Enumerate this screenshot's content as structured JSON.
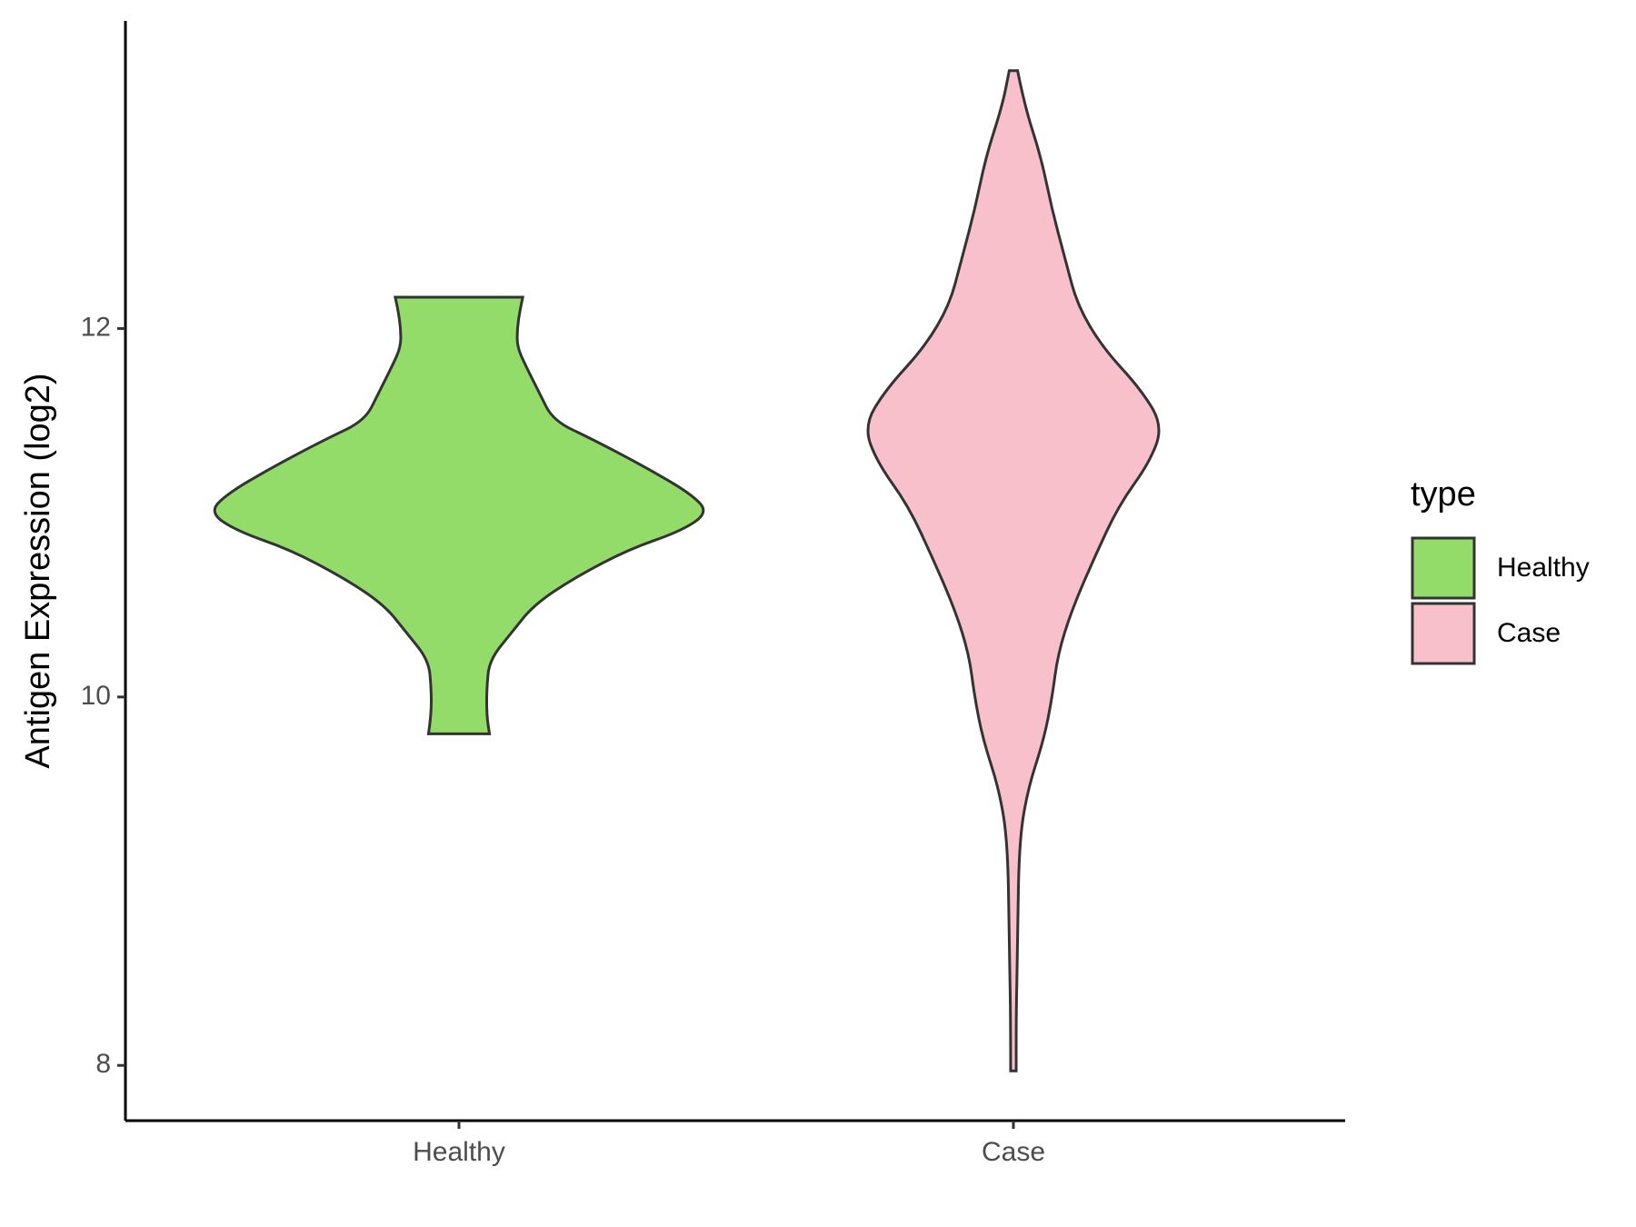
{
  "chart_data": {
    "type": "violin",
    "y_label": "Antigen Expression (log2)",
    "categories": [
      "Healthy",
      "Case"
    ],
    "legend_title": "type",
    "legend_position": "right",
    "ylim": [
      7.7,
      13.67
    ],
    "yticks": [
      8,
      10,
      12
    ],
    "series": [
      {
        "name": "Healthy",
        "color": "#93dc6a",
        "y": [
          12.17,
          12.1,
          12.0,
          11.9,
          11.8,
          11.65,
          11.5,
          11.4,
          11.25,
          11.1,
          11.0,
          10.9,
          10.8,
          10.65,
          10.5,
          10.35,
          10.2,
          10.05,
          9.9,
          9.8
        ],
        "widths": [
          0.23,
          0.22,
          0.21,
          0.21,
          0.24,
          0.29,
          0.34,
          0.48,
          0.67,
          0.84,
          0.9,
          0.8,
          0.61,
          0.42,
          0.27,
          0.19,
          0.11,
          0.1,
          0.1,
          0.11
        ]
      },
      {
        "name": "Case",
        "color": "#f7c0cb",
        "y": [
          13.4,
          13.21,
          12.93,
          12.64,
          12.36,
          12.13,
          11.9,
          11.67,
          11.47,
          11.27,
          11.04,
          10.75,
          10.47,
          10.23,
          10.0,
          9.77,
          9.49,
          9.2,
          8.63,
          8.29,
          7.97
        ],
        "widths": [
          0.015,
          0.04,
          0.1,
          0.14,
          0.19,
          0.23,
          0.32,
          0.46,
          0.54,
          0.49,
          0.38,
          0.29,
          0.21,
          0.16,
          0.14,
          0.11,
          0.05,
          0.02,
          0.015,
          0.01,
          0.01
        ]
      }
    ]
  }
}
